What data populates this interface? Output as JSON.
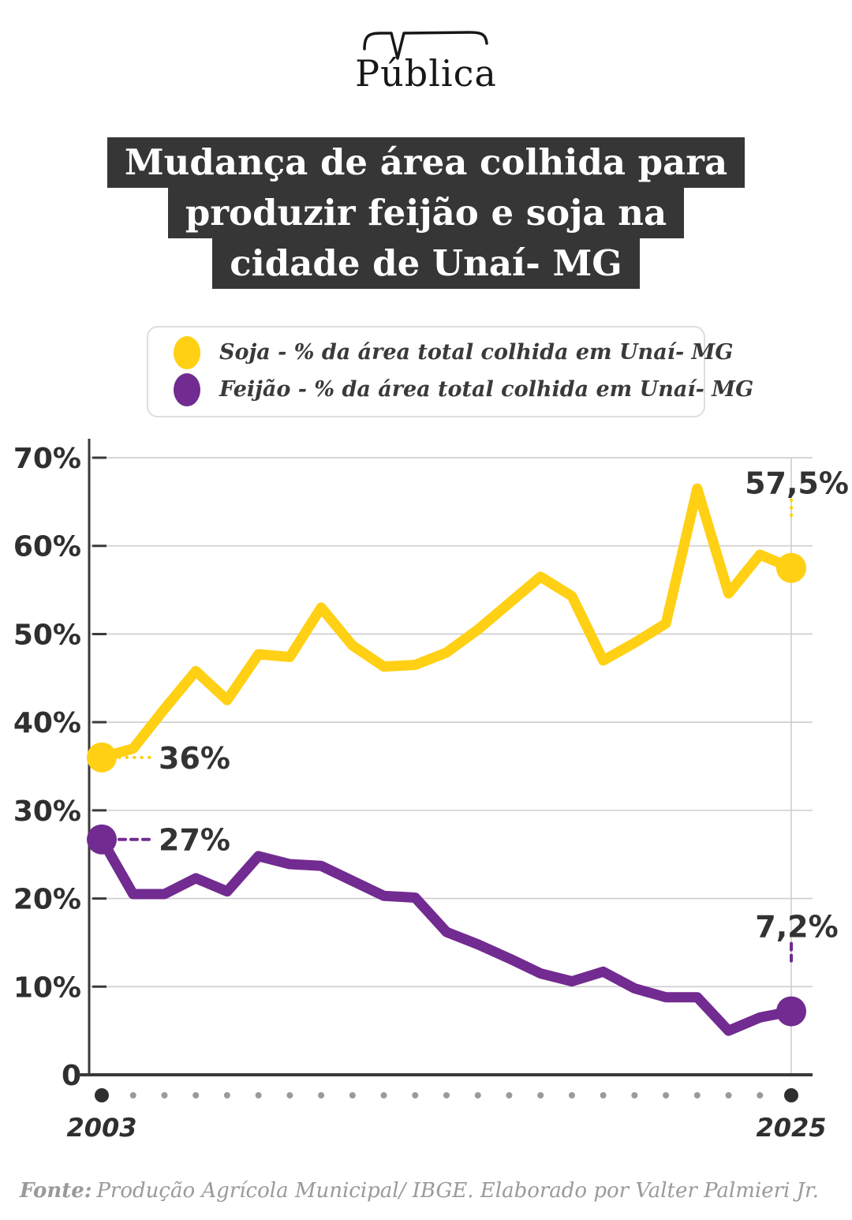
{
  "logo": {
    "text": "Pública"
  },
  "title": {
    "lines": [
      "Mudança de área colhida para",
      "produzir feijão e soja na",
      "cidade de Unaí- MG"
    ],
    "bg_color": "#363636",
    "text_color": "#ffffff"
  },
  "legend": {
    "items": [
      {
        "label": "Soja - % da área total colhida em Unaí- MG",
        "color": "#FFD014"
      },
      {
        "label": "Feijão - % da área total colhida em Unaí- MG",
        "color": "#722B90"
      }
    ]
  },
  "chart_data": {
    "type": "line",
    "x": [
      2003,
      2004,
      2005,
      2006,
      2007,
      2008,
      2009,
      2010,
      2011,
      2012,
      2013,
      2014,
      2015,
      2016,
      2017,
      2018,
      2019,
      2020,
      2021,
      2022,
      2023,
      2024,
      2025
    ],
    "series": [
      {
        "name": "Soja - % da área total colhida em Unaí- MG",
        "color": "#FFD014",
        "values": [
          36,
          37,
          41.5,
          45.8,
          42.5,
          47.7,
          47.4,
          53,
          48.7,
          46.3,
          46.5,
          47.9,
          50.5,
          53.5,
          56.5,
          54.3,
          47,
          49,
          51.2,
          66.5,
          54.6,
          59,
          57.5
        ],
        "start_label": "36%",
        "end_label": "57,5%",
        "leader_dash": "0.5 9"
      },
      {
        "name": "Feijão - % da área total colhida em Unaí- MG",
        "color": "#722B90",
        "values": [
          26.7,
          20.5,
          20.5,
          22.3,
          20.8,
          24.8,
          23.9,
          23.7,
          22,
          20.3,
          20.1,
          16.2,
          14.8,
          13.2,
          11.5,
          10.6,
          11.7,
          9.8,
          8.8,
          8.8,
          5,
          6.5,
          7.2
        ],
        "start_label": "27%",
        "end_label": "7,2%",
        "leader_dash": "8 7"
      }
    ],
    "ylim": [
      0,
      70
    ],
    "yticks": [
      {
        "value": 0,
        "label": "0"
      },
      {
        "value": 10,
        "label": "10%"
      },
      {
        "value": 20,
        "label": "20%"
      },
      {
        "value": 30,
        "label": "30%"
      },
      {
        "value": 40,
        "label": "40%"
      },
      {
        "value": 50,
        "label": "50%"
      },
      {
        "value": 60,
        "label": "60%"
      },
      {
        "value": 70,
        "label": "70%"
      }
    ],
    "x_axis_labels": [
      {
        "index": 0,
        "label": "2003"
      },
      {
        "index": 22,
        "label": "2025"
      }
    ],
    "grid": true,
    "legend_position": "top",
    "grid_color": "#cdcdcd",
    "axis_color": "#3a3a3a",
    "minor_dot_color": "#9a9a9a",
    "major_dot_color": "#2f2f2f"
  },
  "footer": {
    "prefix": "Fonte:",
    "text": "Produção Agrícola Municipal/ IBGE. Elaborado por Valter Palmieri Jr."
  }
}
